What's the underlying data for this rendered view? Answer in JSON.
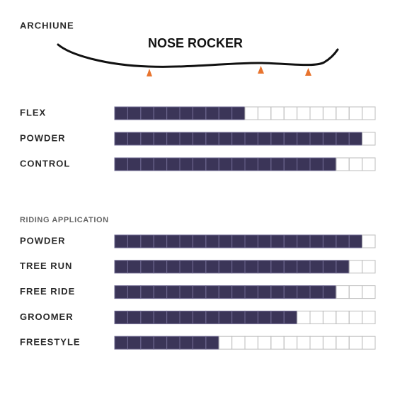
{
  "brand": "ARCHIUNE",
  "profile": {
    "label": "NOSE ROCKER"
  },
  "scale_max": 20,
  "specs": [
    {
      "label": "FLEX",
      "value": 10
    },
    {
      "label": "POWDER",
      "value": 19
    },
    {
      "label": "CONTROL",
      "value": 17
    }
  ],
  "riding_application": {
    "title": "RIDING APPLICATION",
    "rows": [
      {
        "label": "POWDER",
        "value": 19
      },
      {
        "label": "TREE RUN",
        "value": 18
      },
      {
        "label": "FREE RIDE",
        "value": 17
      },
      {
        "label": "GROOMER",
        "value": 14
      },
      {
        "label": "FREESTYLE",
        "value": 8
      }
    ]
  }
}
